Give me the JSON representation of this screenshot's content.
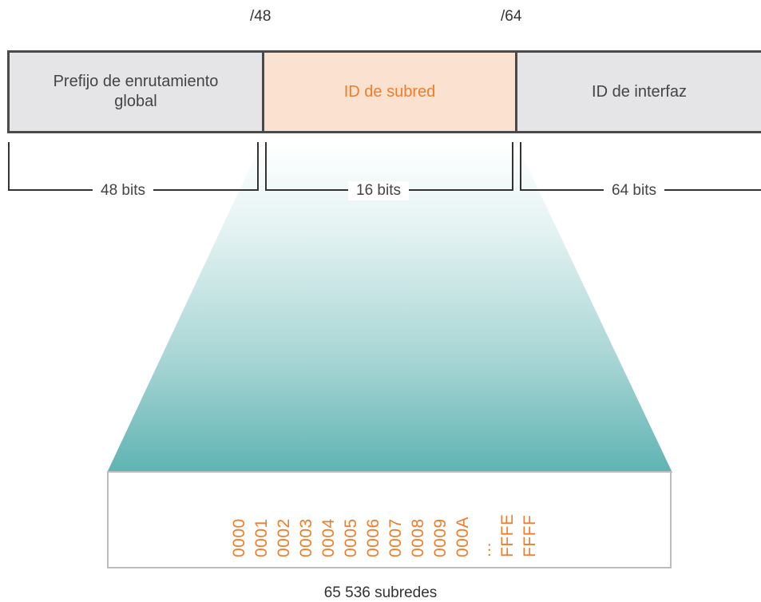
{
  "markers": {
    "left": "/48",
    "right": "/64"
  },
  "segments": {
    "global_prefix": "Prefijo de enrutamiento global",
    "subnet_id": "ID de subred",
    "interface_id": "ID de interfaz"
  },
  "bits": {
    "global": "48 bits",
    "subnet": "16 bits",
    "interface": "64 bits"
  },
  "subnet_values": [
    "0000",
    "0001",
    "0002",
    "0003",
    "0004",
    "0005",
    "0006",
    "0007",
    "0008",
    "0009",
    "000A"
  ],
  "ellipsis": "...",
  "subnet_values_end": [
    "FFFE",
    "FFFF"
  ],
  "caption": "65 536 subredes",
  "colors": {
    "accent": "#f07c2a",
    "subnet_fill": "#fbe1cf",
    "segment_fill": "#e5e5e7",
    "teal": "#5fb3b3"
  }
}
